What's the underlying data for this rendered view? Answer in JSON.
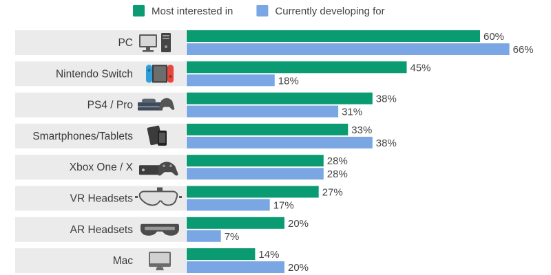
{
  "chart_data": {
    "type": "bar",
    "orientation": "horizontal",
    "categories": [
      {
        "label": "PC",
        "icon": "desktop-pc-icon"
      },
      {
        "label": "Nintendo Switch",
        "icon": "nintendo-switch-icon"
      },
      {
        "label": "PS4 / Pro",
        "icon": "playstation-console-icon"
      },
      {
        "label": "Smartphones/Tablets",
        "icon": "smartphone-tablet-icon"
      },
      {
        "label": "Xbox One / X",
        "icon": "xbox-console-icon"
      },
      {
        "label": "VR Headsets",
        "icon": "vr-headset-icon"
      },
      {
        "label": "AR Headsets",
        "icon": "ar-headset-icon"
      },
      {
        "label": "Mac",
        "icon": "imac-icon"
      }
    ],
    "series": [
      {
        "name": "Most interested in",
        "color": "#0a9b72",
        "values": [
          60,
          45,
          38,
          33,
          28,
          27,
          20,
          14
        ]
      },
      {
        "name": "Currently developing for",
        "color": "#7aa7e3",
        "values": [
          66,
          18,
          31,
          38,
          28,
          17,
          7,
          20
        ]
      }
    ],
    "value_suffix": "%",
    "xlim": [
      0,
      70
    ],
    "legend_position": "top-center",
    "grid": false
  }
}
